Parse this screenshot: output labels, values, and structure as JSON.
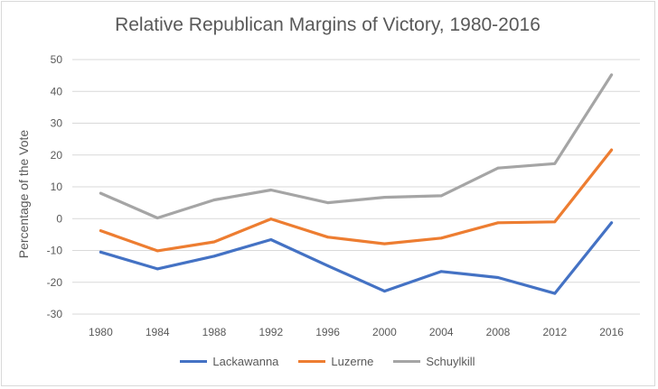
{
  "chart_data": {
    "type": "line",
    "title": "Relative Republican Margins of Victory, 1980-2016",
    "xlabel": "",
    "ylabel": "Percentage of the Vote",
    "categories": [
      "1980",
      "1984",
      "1988",
      "1992",
      "1996",
      "2000",
      "2004",
      "2008",
      "2012",
      "2016"
    ],
    "yticks": [
      "50",
      "40",
      "30",
      "20",
      "10",
      "0",
      "-10",
      "-20",
      "-30"
    ],
    "ylim": [
      -30,
      50
    ],
    "grid": true,
    "legend_position": "bottom",
    "series": [
      {
        "name": "Lackawanna",
        "color": "#4472c4",
        "values": [
          -10.5,
          -15.8,
          -11.8,
          -6.6,
          -14.8,
          -22.8,
          -16.6,
          -18.5,
          -23.5,
          -1.3
        ]
      },
      {
        "name": "Luzerne",
        "color": "#ed7d31",
        "values": [
          -3.8,
          -10.1,
          -7.3,
          -0.1,
          -5.8,
          -7.9,
          -6.1,
          -1.3,
          -1.0,
          21.6
        ]
      },
      {
        "name": "Schuylkill",
        "color": "#a5a5a5",
        "values": [
          8.0,
          0.2,
          5.9,
          9.0,
          5.0,
          6.7,
          7.2,
          15.9,
          17.3,
          45.2
        ]
      }
    ]
  }
}
